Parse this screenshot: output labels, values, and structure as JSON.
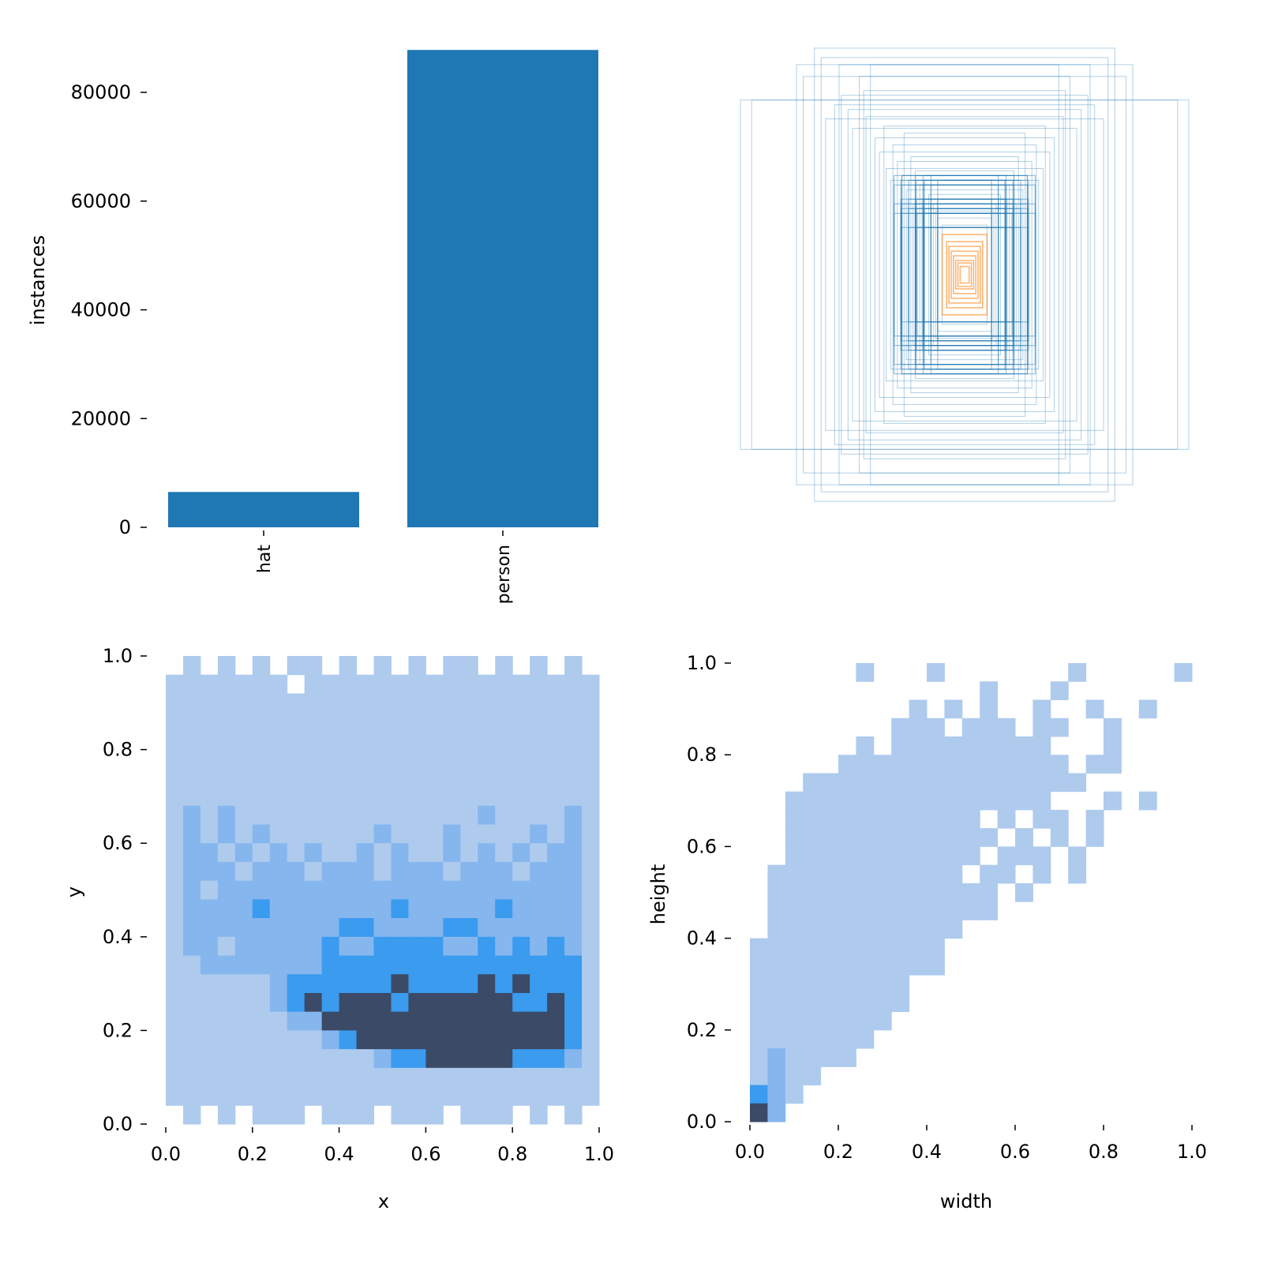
{
  "chart_data": [
    {
      "type": "bar",
      "title": "",
      "categories": [
        "hat",
        "person"
      ],
      "values": [
        6500,
        87800
      ],
      "xlabel": "",
      "ylabel": "instances",
      "ylim": [
        0,
        88000
      ],
      "yticks": [
        0,
        20000,
        40000,
        60000,
        80000
      ],
      "ytick_labels": [
        "0",
        "20000",
        "40000",
        "60000",
        "80000"
      ],
      "color": "#1f77b4"
    },
    {
      "type": "box-overlay",
      "title": "",
      "description_colors": {
        "person": "#1f77b4",
        "hat": "#ff7f0e"
      },
      "boxes_wh": [
        [
          1.0,
          0.74
        ],
        [
          0.95,
          0.74
        ],
        [
          0.75,
          0.89
        ],
        [
          0.72,
          0.84
        ],
        [
          0.67,
          0.96
        ],
        [
          0.64,
          0.92
        ],
        [
          0.56,
          0.89
        ],
        [
          0.42,
          0.89
        ],
        [
          0.45,
          0.78
        ],
        [
          0.55,
          0.76
        ],
        [
          0.47,
          0.84
        ],
        [
          0.62,
          0.66
        ],
        [
          0.52,
          0.7
        ],
        [
          0.44,
          0.67
        ],
        [
          0.36,
          0.63
        ],
        [
          0.4,
          0.58
        ],
        [
          0.32,
          0.55
        ],
        [
          0.27,
          0.6
        ],
        [
          0.3,
          0.48
        ],
        [
          0.24,
          0.5
        ],
        [
          0.22,
          0.44
        ],
        [
          0.2,
          0.38
        ],
        [
          0.18,
          0.4
        ],
        [
          0.16,
          0.34
        ],
        [
          0.14,
          0.3
        ],
        [
          0.13,
          0.27
        ],
        [
          0.12,
          0.24
        ],
        [
          0.1,
          0.21
        ],
        [
          0.35,
          0.45
        ],
        [
          0.28,
          0.42
        ],
        [
          0.26,
          0.36
        ],
        [
          0.19,
          0.32
        ],
        [
          0.5,
          0.62
        ],
        [
          0.58,
          0.72
        ],
        [
          0.38,
          0.52
        ],
        [
          0.33,
          0.4
        ],
        [
          0.23,
          0.3
        ],
        [
          0.21,
          0.26
        ]
      ],
      "hat_boxes_wh": [
        [
          0.1,
          0.17
        ],
        [
          0.08,
          0.14
        ],
        [
          0.07,
          0.12
        ],
        [
          0.06,
          0.1
        ],
        [
          0.05,
          0.08
        ],
        [
          0.04,
          0.06
        ],
        [
          0.03,
          0.05
        ],
        [
          0.02,
          0.035
        ]
      ]
    },
    {
      "type": "heatmap",
      "title": "",
      "xlabel": "x",
      "ylabel": "y",
      "xlim": [
        0,
        1
      ],
      "ylim": [
        0,
        1
      ],
      "xticks": [
        "0.0",
        "0.2",
        "0.4",
        "0.6",
        "0.8",
        "1.0"
      ],
      "yticks": [
        "0.0",
        "0.2",
        "0.4",
        "0.6",
        "0.8",
        "1.0"
      ],
      "levels_colors": [
        "#ffffff",
        "#aecbee",
        "#86b6ee",
        "#3a9bef",
        "#3b4a66"
      ],
      "grid_rows_top_to_bottom": [
        "0101010110101010110101010",
        "1111111011111111111111111",
        "1111111111111111111111111",
        "1111111111111111111111111",
        "1111111111111111111111111",
        "1111111111111111111111111",
        "1111111111111111111111111",
        "1111111111111111111111111",
        "1212111111111111112111121",
        "1212121111112111211112121",
        "1221212121121211212121221",
        "1222122212221222122212221",
        "1212222222222222222222221",
        "1222232222222322222322221",
        "1222222222332222332222221",
        "1221222223223333223232321",
        "1122222223333333333333331",
        "1111112333333433334343331",
        "1111112343444344444433431",
        "1111111224444444444444431",
        "1111111112344444444444431",
        "1111111111112334444433321",
        "1111111111111111111111111",
        "1111111111111111111111111",
        "0101011101110111011101010"
      ]
    },
    {
      "type": "heatmap",
      "title": "",
      "xlabel": "width",
      "ylabel": "height",
      "xlim": [
        0,
        1
      ],
      "ylim": [
        0,
        1
      ],
      "xticks": [
        "0.0",
        "0.2",
        "0.4",
        "0.6",
        "0.8",
        "1.0"
      ],
      "yticks": [
        "0.0",
        "0.2",
        "0.4",
        "0.6",
        "0.8",
        "1.0"
      ],
      "levels_colors": [
        "#ffffff",
        "#aecbee",
        "#86b6ee",
        "#3a9bef",
        "#3b4a66"
      ],
      "grid_rows_top_to_bottom": [
        "0000001000100000001000001",
        "0000000000000100010000000",
        "0000000001010100100100100",
        "0000000011101110110010000",
        "0000001011111111100010000",
        "0000011111111111110110000",
        "0001111111111111111000000",
        "0011111111111111100010100",
        "0011111111111010110100000",
        "0011111111111101010100000",
        "0011111111111011101000000",
        "0111111111110110101000000",
        "0111111111111101000000000",
        "0111111111111100000000000",
        "0111111111110000000000000",
        "1111111111100000000000000",
        "1111111111100000000000000",
        "1111111110000000000000000",
        "1111111110000000000000000",
        "1111111100000000000000000",
        "1111111000000000000000000",
        "1211110000000000000000000",
        "1211000000000000000000000",
        "3210000000000000000000000",
        "4200000000000000000000000"
      ]
    }
  ]
}
